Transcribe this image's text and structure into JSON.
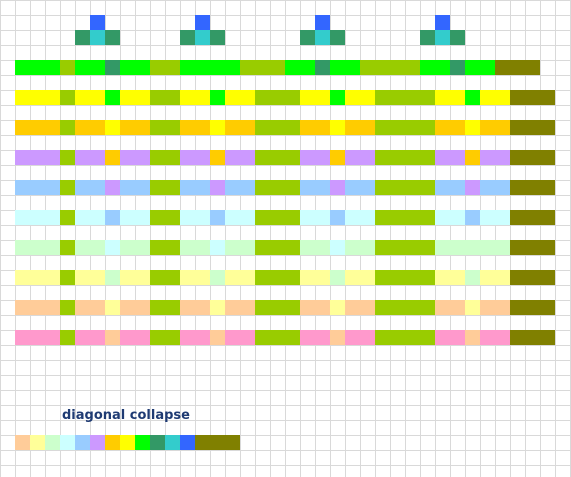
{
  "caption": "diagonal collapse",
  "colors": {
    "grid_line": "#d9d9d9",
    "blue": "#3366ff",
    "cyan": "#33cccc",
    "teal": "#339966",
    "green": "#00ff00",
    "yellow": "#ffff00",
    "gold": "#ffcc00",
    "lavender": "#cc99ff",
    "sky": "#99ccff",
    "ice": "#ccffff",
    "mint": "#ccffcc",
    "cream": "#ffff99",
    "peach": "#ffcc99",
    "pink": "#ff99cc",
    "olive": "#99cc00",
    "dark_olive": "#808000"
  },
  "legend": {
    "B": "blue",
    "C": "cyan",
    "T": "teal",
    "G": "green",
    "Y": "yellow",
    "O": "gold",
    "L": "lavender",
    "S": "sky",
    "I": "ice",
    "M": "mint",
    "R": "cream",
    "P": "peach",
    "K": "pink",
    "V": "olive",
    "D": "dark_olive"
  },
  "rows": [
    "..................................................",
    "......B......B.......B.......B....................",
    ".....TCT....TCT.....TCT.....TCT...................",
    "..................................................",
    ".GGGVGGTGGVVGGGGVVVGGTGGVVVVGGTGGDDD..............",
    "..................................................",
    ".YYYVYYGYYVVYYGYYVVVYYGYYVVVVYYGYYDDD.............",
    "..................................................",
    ".OOOVOOYOOVVOOYOOVVVOOYOOVVVVOOYOODDD.............",
    "..................................................",
    ".LLLVLLOLLVVLLOLLVVVLLOLLVVVVLLOLLDDD.............",
    "..................................................",
    ".SSSVSSLSSVVSSLSSVVVSSLSSVVVVSSLSSDDD.............",
    "..................................................",
    ".IIIVIISIIVVIISIIVVVIISIIVVVVIISIIDDD.............",
    "..................................................",
    ".MMMVMMIMMVVMMIMMVVVMMIMMVVVVMMMMMDDD.............",
    "..................................................",
    ".RRRVRRMRRVVRRMRRVVVRRMRRVVVVRRMRRDDD.............",
    "..................................................",
    ".PPPVPPRPPVVPPRPPVVVPPRPPVVVVPPRPPDDD.............",
    "..................................................",
    ".KKKVKKPKKVVKKPKKVVVKKPKKVVVVKKPKKDDD.............",
    "..................................................",
    "..................................................",
    "..................................................",
    "..................................................",
    "..................................................",
    "..................................................",
    ".PRMISLOYGTCBDDD..................................",
    ".................................................."
  ]
}
